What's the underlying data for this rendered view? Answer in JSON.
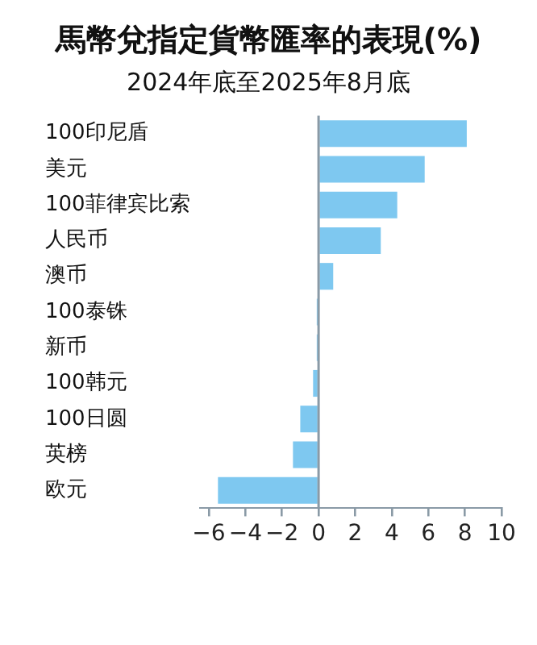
{
  "chart_data": {
    "type": "bar",
    "orientation": "horizontal",
    "title": "馬幣兌指定貨幣匯率的表現(%)",
    "subtitle": "2024年底至2025年8月底",
    "categories": [
      "100印尼盾",
      "美元",
      "100菲律宾比索",
      "人民币",
      "澳币",
      "100泰铢",
      "新币",
      "100韩元",
      "100日圆",
      "英榜",
      "欧元"
    ],
    "values": [
      8.1,
      5.8,
      4.3,
      3.4,
      0.8,
      -0.1,
      -0.1,
      -0.3,
      -1.0,
      -1.4,
      -5.5
    ],
    "color": "#7ec8f0",
    "xlim": [
      -6.5,
      10
    ],
    "xticks": [
      -6,
      -4,
      -2,
      0,
      2,
      4,
      6,
      8,
      10
    ],
    "grid": false,
    "legend": false,
    "ref_lines": [
      {
        "axis": "x",
        "value": 0,
        "color": "#8a9aa6"
      }
    ]
  }
}
